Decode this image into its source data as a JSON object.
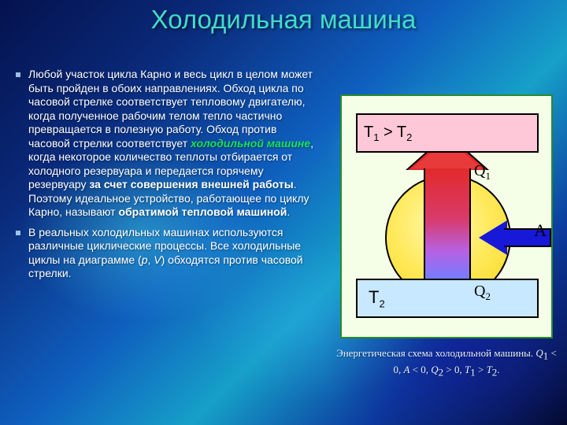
{
  "colors": {
    "title": "#41dcc8",
    "highlight_green": "#17e25c",
    "text": "#ffffff",
    "figure_bg": "#f5ffe8",
    "figure_border": "#2a8a2a",
    "hot_reservoir_fill": "#ffc8d8",
    "cold_reservoir_fill": "#c8e8ff",
    "circle_fill": "#ffe95a",
    "arrow_top": "#e02a2a",
    "arrow_bottom": "#5a9aff",
    "work_arrow": "#1818d8"
  },
  "title": "Холодильная машина",
  "body": {
    "p1a": "Любой участок цикла Карно и весь цикл в целом может быть пройден в обоих направлениях. Обход цикла по часовой стрелке соответствует тепловому двигателю, когда полученное рабочим телом тепло частично превращается в полезную работу. Обход против часовой стрелки соответствует ",
    "p1_hl": "холодильной машине",
    "p1b": ", когда некоторое количество теплоты отбирается от холодного резервуара и передается горячему резервуару ",
    "p1_bold1": "за счет совершения внешней работы",
    "p1c": ". Поэтому идеальное устройство, работающее по циклу Карно, называют ",
    "p1_bold2": "обратимой тепловой машиной",
    "p1d": ".",
    "p2a": "В реальных холодильных машинах используются различные циклические процессы. Все холодильные циклы на диаграмме (",
    "p2_i1": "p",
    "p2_sep": ", ",
    "p2_i2": "V",
    "p2b": ") обходятся против часовой стрелки."
  },
  "figure": {
    "hot_label_html": "T<span class=\"sub\">1</span> &gt; T<span class=\"sub\">2</span>",
    "cold_label_html": "T<span class=\"sub\">2</span>",
    "Q1_html": "Q<span class=\"sub\">1</span>",
    "Q2_html": "Q<span class=\"sub\">2</span>",
    "A_label": "A"
  },
  "caption": {
    "prefix": "Энергетическая схема холодильной машины. ",
    "math_html": "<span class=\"mi\">Q</span><span class=\"sub\">1</span> &lt; 0, <span class=\"mi\">A</span> &lt; 0, <span class=\"mi\">Q</span><span class=\"sub\">2</span> &gt; 0, <span class=\"mi\">T</span><span class=\"sub\">1</span> &gt; <span class=\"mi\">T</span><span class=\"sub\">2</span>."
  }
}
